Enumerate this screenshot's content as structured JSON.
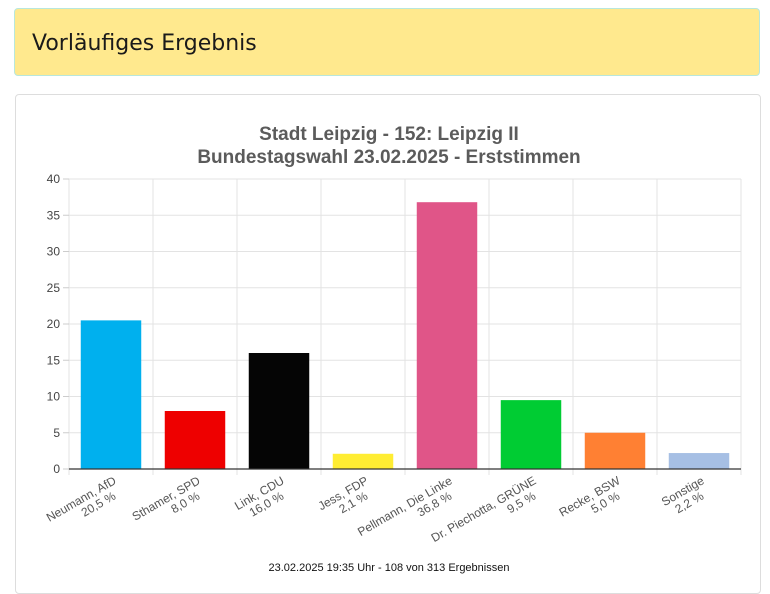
{
  "banner": {
    "title": "Vorläufiges Ergebnis"
  },
  "chart_data": {
    "type": "bar",
    "title_lines": [
      "Stadt Leipzig - 152: Leipzig II",
      "Bundestagswahl 23.02.2025  - Erststimmen"
    ],
    "categories": [
      "Neumann, AfD",
      "Sthamer, SPD",
      "Link, CDU",
      "Jess, FDP",
      "Pellmann, Die Linke",
      "Dr. Piechotta, GRÜNE",
      "Recke, BSW",
      "Sonstige"
    ],
    "value_labels": [
      "20,5 %",
      "8,0 %",
      "16,0 %",
      "2,1 %",
      "36,8 %",
      "9,5 %",
      "5,0 %",
      "2,2 %"
    ],
    "values": [
      20.5,
      8.0,
      16.0,
      2.1,
      36.8,
      9.5,
      5.0,
      2.2
    ],
    "colors": [
      "#00b0ee",
      "#ee0000",
      "#050505",
      "#ffed33",
      "#e05588",
      "#00cc33",
      "#ff8033",
      "#a6bfe4"
    ],
    "ylim": [
      0,
      40
    ],
    "yticks": [
      0,
      5,
      10,
      15,
      20,
      25,
      30,
      35,
      40
    ],
    "grid": true,
    "legend": "none"
  },
  "footer": {
    "text": "23.02.2025 19:35 Uhr - 108 von 313 Ergebnissen"
  }
}
